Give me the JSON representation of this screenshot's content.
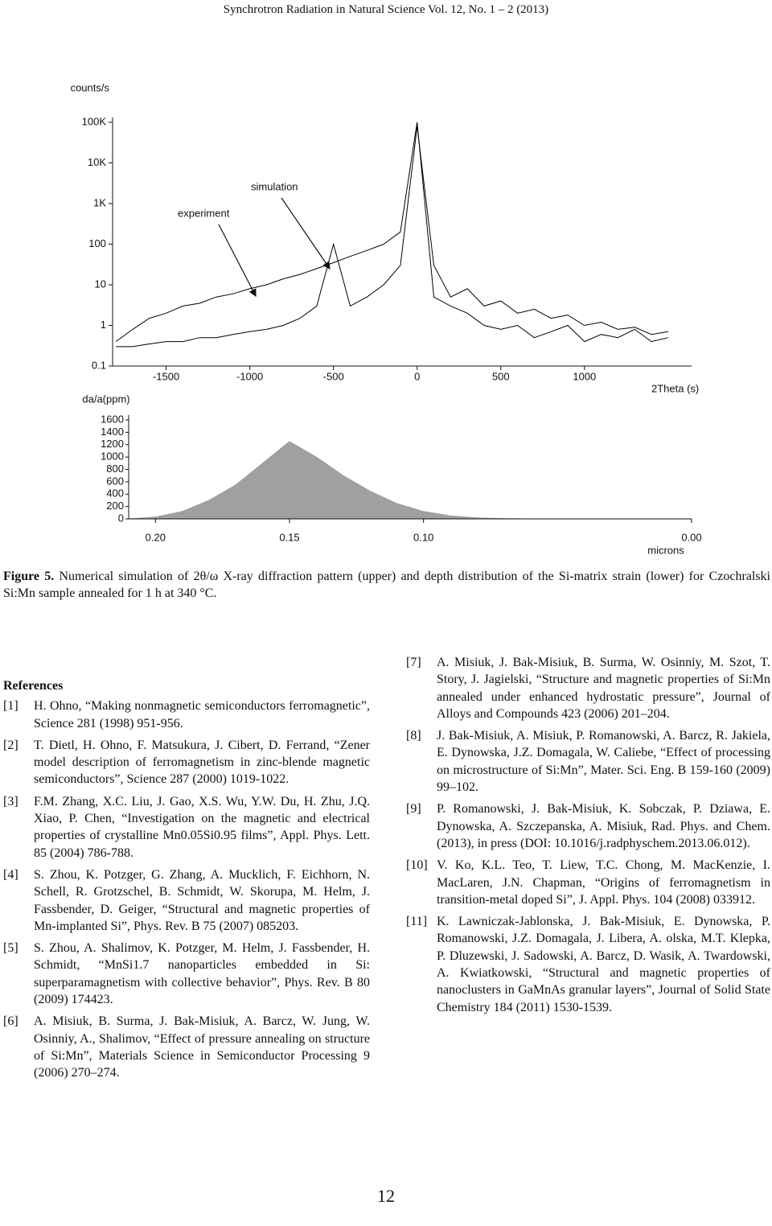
{
  "header": "Synchrotron Radiation in Natural Science Vol. 12, No. 1 – 2 (2013)",
  "chart_data": [
    {
      "type": "line",
      "ylabel": "counts/s",
      "xlabel": "2Theta (s)",
      "yscale": "log",
      "annotations": [
        "simulation",
        "experiment"
      ],
      "x": [
        -1800,
        -1700,
        -1600,
        -1500,
        -1400,
        -1300,
        -1200,
        -1100,
        -1000,
        -900,
        -800,
        -700,
        -600,
        -500,
        -400,
        -300,
        -200,
        -100,
        0,
        100,
        200,
        300,
        400,
        500,
        600,
        700,
        800,
        900,
        1000,
        1100,
        1200,
        1300,
        1400,
        1500
      ],
      "series": [
        {
          "name": "experiment",
          "color": "#000000",
          "values": [
            0.4,
            0.8,
            1.5,
            2,
            3,
            3.5,
            5,
            6,
            8,
            10,
            14,
            18,
            25,
            35,
            50,
            70,
            100,
            200,
            100000,
            5,
            3,
            2,
            1,
            0.8,
            1,
            0.5,
            0.7,
            1,
            0.4,
            0.6,
            0.5,
            0.8,
            0.4,
            0.5
          ]
        },
        {
          "name": "simulation",
          "color": "#000000",
          "values": [
            0.3,
            0.3,
            0.35,
            0.4,
            0.4,
            0.5,
            0.5,
            0.6,
            0.7,
            0.8,
            1,
            1.5,
            3,
            100,
            3,
            5,
            10,
            30,
            80000,
            30,
            5,
            8,
            3,
            4,
            2,
            2.5,
            1.5,
            1.8,
            1,
            1.2,
            0.8,
            0.9,
            0.6,
            0.7
          ]
        }
      ],
      "xlim": [
        -1820,
        1640
      ],
      "xticks": [
        -1500,
        -1000,
        -500,
        0,
        500,
        1000
      ],
      "ylim": [
        0.1,
        100000
      ],
      "yticks": [
        {
          "value": 100000,
          "label": "100K"
        },
        {
          "value": 10000,
          "label": "10K"
        },
        {
          "value": 1000,
          "label": "1K"
        },
        100,
        10,
        1,
        0.1
      ]
    },
    {
      "type": "area",
      "ylabel": "da/a(ppm)",
      "xlabel": "microns",
      "color": "#a0a0a0",
      "x": [
        0.21,
        0.2,
        0.19,
        0.18,
        0.17,
        0.16,
        0.15,
        0.14,
        0.13,
        0.12,
        0.11,
        0.1,
        0.09,
        0.08,
        0.07,
        0.06,
        0.05,
        0.04,
        0.03,
        0.02,
        0.01,
        0
      ],
      "values": [
        0,
        30,
        120,
        300,
        550,
        900,
        1250,
        1000,
        700,
        450,
        250,
        120,
        50,
        15,
        5,
        0,
        0,
        0,
        0,
        0,
        0,
        0
      ],
      "xlim": [
        0.21,
        0
      ],
      "xticks": [
        {
          "value": 0.2,
          "label": "0.20"
        },
        0.15,
        {
          "value": 0.1,
          "label": "0.10"
        },
        {
          "value": 0,
          "label": "0.00"
        }
      ],
      "ylim": [
        0,
        1600
      ],
      "yticks": [
        0,
        200,
        400,
        600,
        800,
        1000,
        1200,
        1400,
        1600
      ]
    }
  ],
  "caption": {
    "label": "Figure 5.",
    "text": "Numerical simulation of 2θ/ω X-ray diffraction pattern (upper) and depth distribution of the Si-matrix strain (lower) for Czochralski Si:Mn sample annealed for 1 h at 340 °C."
  },
  "references": {
    "heading": "References",
    "items": [
      {
        "number": "[1]",
        "text": "H. Ohno, “Making nonmagnetic semiconductors ferromagnetic”, Science 281 (1998) 951-956."
      },
      {
        "number": "[2]",
        "text": "T. Dietl, H. Ohno, F. Matsukura, J. Cibert, D. Ferrand, “Zener model description of ferromagnetism in zinc-blende magnetic semiconductors”, Science 287 (2000) 1019-1022."
      },
      {
        "number": "[3]",
        "text": "F.M. Zhang, X.C. Liu, J. Gao, X.S. Wu, Y.W. Du, H. Zhu, J.Q. Xiao, P. Chen, “Investigation on the magnetic and electrical properties of crystalline Mn0.05Si0.95 films”, Appl. Phys. Lett. 85 (2004) 786-788."
      },
      {
        "number": "[4]",
        "text": "S. Zhou, K. Potzger, G. Zhang, A. Mucklich, F. Eichhorn, N. Schell, R. Grotzschel, B. Schmidt, W. Skorupa, M. Helm, J. Fassbender, D. Geiger, “Structural and magnetic properties of Mn-implanted Si”, Phys. Rev. B 75 (2007) 085203."
      },
      {
        "number": "[5]",
        "text": "S. Zhou, A. Shalimov, K. Potzger, M. Helm, J. Fassbender, H. Schmidt, “MnSi1.7 nanoparticles embedded in Si: superparamagnetism with collective behavior”, Phys. Rev. B 80 (2009) 174423."
      },
      {
        "number": "[6]",
        "text": "A. Misiuk, B. Surma, J. Bak-Misiuk, A. Barcz, W. Jung, W. Osinniy, A., Shalimov, “Effect of pressure annealing on structure of Si:Mn”, Materials Science in Semiconductor Processing 9 (2006) 270–274."
      },
      {
        "number": "[7]",
        "text": "A. Misiuk, J. Bak-Misiuk, B. Surma, W. Osinniy, M. Szot, T. Story, J. Jagielski, “Structure and magnetic properties of Si:Mn annealed under enhanced hydrostatic pressure”, Journal of Alloys and Compounds 423 (2006) 201–204."
      },
      {
        "number": "[8]",
        "text": "J. Bak-Misiuk, A. Misiuk, P. Romanowski, A. Barcz, R. Jakiela, E. Dynowska, J.Z. Domagala, W. Caliebe, “Effect of processing on microstructure of Si:Mn”, Mater. Sci. Eng. B 159-160 (2009) 99–102."
      },
      {
        "number": "[9]",
        "text": "P. Romanowski, J. Bak-Misiuk, K. Sobczak, P. Dziawa, E. Dynowska, A. Szczepanska, A. Misiuk, Rad. Phys. and Chem. (2013), in press (DOI: 10.1016/j.radphyschem.2013.06.012)."
      },
      {
        "number": "[10]",
        "text": "V. Ko, K.L. Teo, T. Liew, T.C. Chong, M. MacKenzie, I. MacLaren, J.N. Chapman, “Origins of ferromagnetism in transition-metal doped Si”, J. Appl. Phys. 104 (2008) 033912."
      },
      {
        "number": "[11]",
        "text": "K. Lawniczak-Jablonska, J. Bak-Misiuk, E. Dynowska, P. Romanowski, J.Z. Domagala, J. Libera, A. olska, M.T. Klepka, P. Dluzewski, J. Sadowski, A. Barcz, D. Wasik, A. Twardowski, A. Kwiatkowski, “Structural and magnetic properties of nanoclusters in GaMnAs granular layers”, Journal of Solid State Chemistry 184 (2011) 1530-1539."
      }
    ]
  },
  "page_number": "12"
}
